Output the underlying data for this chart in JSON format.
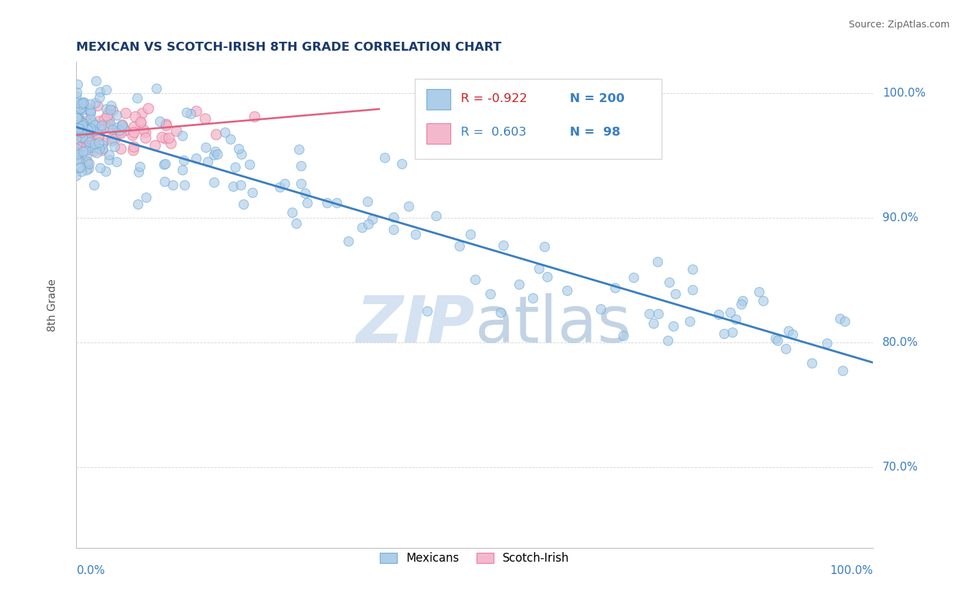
{
  "title": "MEXICAN VS SCOTCH-IRISH 8TH GRADE CORRELATION CHART",
  "source": "Source: ZipAtlas.com",
  "ylabel": "8th Grade",
  "blue_R": -0.922,
  "blue_N": 200,
  "pink_R": 0.603,
  "pink_N": 98,
  "blue_color": "#aecde8",
  "pink_color": "#f4b8cc",
  "blue_edge_color": "#6aaad4",
  "pink_edge_color": "#e8789a",
  "blue_line_color": "#3a7fc1",
  "pink_line_color": "#e06080",
  "watermark_color": "#d0dff0",
  "legend_label_blue": "Mexicans",
  "legend_label_pink": "Scotch-Irish",
  "background_color": "#ffffff",
  "grid_color": "#cccccc",
  "title_color": "#1a3a6b",
  "label_color": "#3a7fc1",
  "axis_label_color": "#555555"
}
